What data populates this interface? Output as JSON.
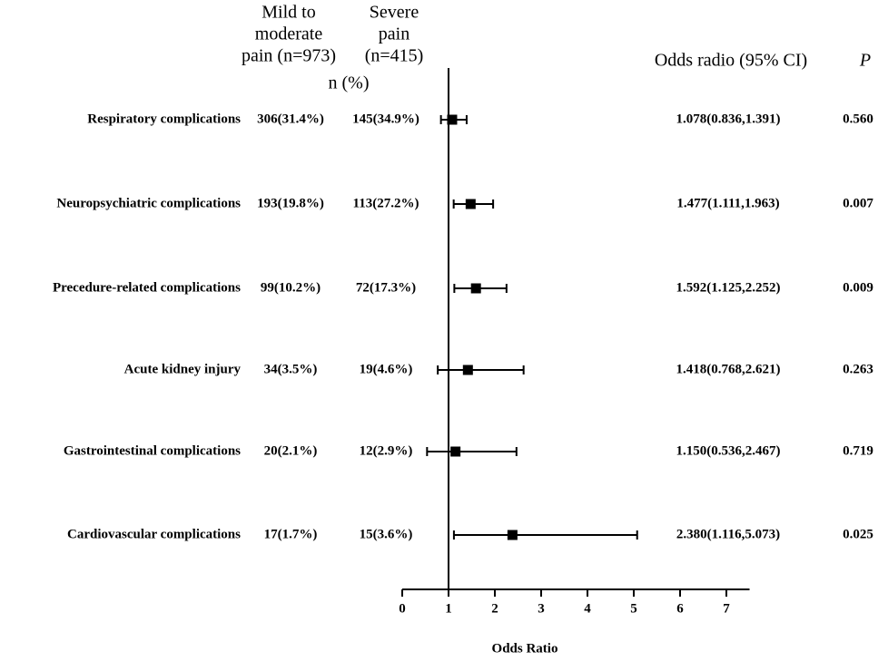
{
  "chart_data": {
    "type": "forest",
    "headers": {
      "mild": [
        "Mild to",
        "moderate",
        "pain (n=973)"
      ],
      "severe": [
        "Severe",
        "pain",
        "(n=415)"
      ],
      "count_unit": "n (%)",
      "ci": "Odds radio (95% CI)",
      "p": "P"
    },
    "categories": [
      "Respiratory complications",
      "Neuropsychiatric complications",
      "Precedure-related complications",
      "Acute kidney injury",
      "Gastrointestinal complications",
      "Cardiovascular complications"
    ],
    "mild": [
      "306(31.4%)",
      "193(19.8%)",
      "99(10.2%)",
      "34(3.5%)",
      "20(2.1%)",
      "17(1.7%)"
    ],
    "severe": [
      "145(34.9%)",
      "113(27.2%)",
      "72(17.3%)",
      "19(4.6%)",
      "12(2.9%)",
      "15(3.6%)"
    ],
    "values": [
      1.078,
      1.477,
      1.592,
      1.418,
      1.15,
      2.38
    ],
    "lower": [
      0.836,
      1.111,
      1.125,
      0.768,
      0.536,
      1.116
    ],
    "upper": [
      1.391,
      1.963,
      2.252,
      2.621,
      2.467,
      5.073
    ],
    "value_labels": [
      "1.078(0.836,1.391)",
      "1.477(1.111,1.963)",
      "1.592(1.125,2.252)",
      "1.418(0.768,2.621)",
      "1.150(0.536,2.467)",
      "2.380(1.116,5.073)"
    ],
    "p_values": [
      "0.560",
      "0.007",
      "0.009",
      "0.263",
      "0.719",
      "0.025"
    ],
    "reference": 1,
    "color": "#000000",
    "xlabel": "Odds Ratio",
    "xlim": [
      0,
      7.5
    ],
    "xticks": [
      0,
      1,
      2,
      3,
      4,
      5,
      6,
      7
    ]
  }
}
